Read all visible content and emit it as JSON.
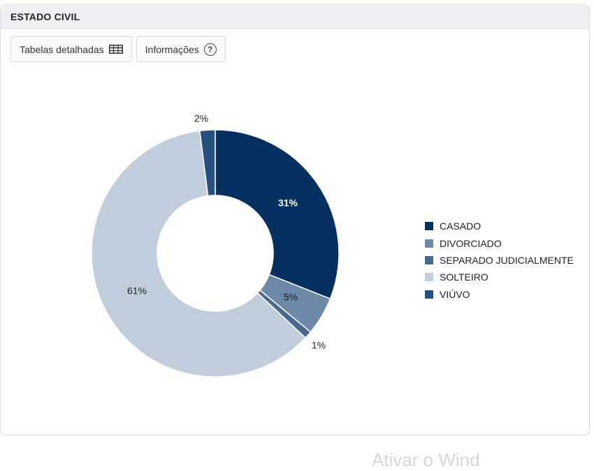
{
  "panel": {
    "title": "ESTADO CIVIL"
  },
  "toolbar": {
    "tables_label": "Tabelas detalhadas",
    "info_label": "Informações",
    "tables_icon": "table-icon",
    "info_icon": "help-circle-icon"
  },
  "footer": {
    "ghost_text": "Ativar o Wind"
  },
  "chart_data": {
    "type": "pie",
    "variant": "donut",
    "title": "",
    "categories": [
      "CASADO",
      "DIVORCIADO",
      "SEPARADO JUDICIALMENTE",
      "SOLTEIRO",
      "VIÚVO"
    ],
    "values": [
      31,
      5,
      1,
      61,
      2
    ],
    "labels": [
      "31%",
      "5%",
      "1%",
      "61%",
      "2%"
    ],
    "colors": [
      "#05305f",
      "#6c89a8",
      "#48698f",
      "#c0cddb",
      "#26507f"
    ],
    "legend_position": "right"
  }
}
